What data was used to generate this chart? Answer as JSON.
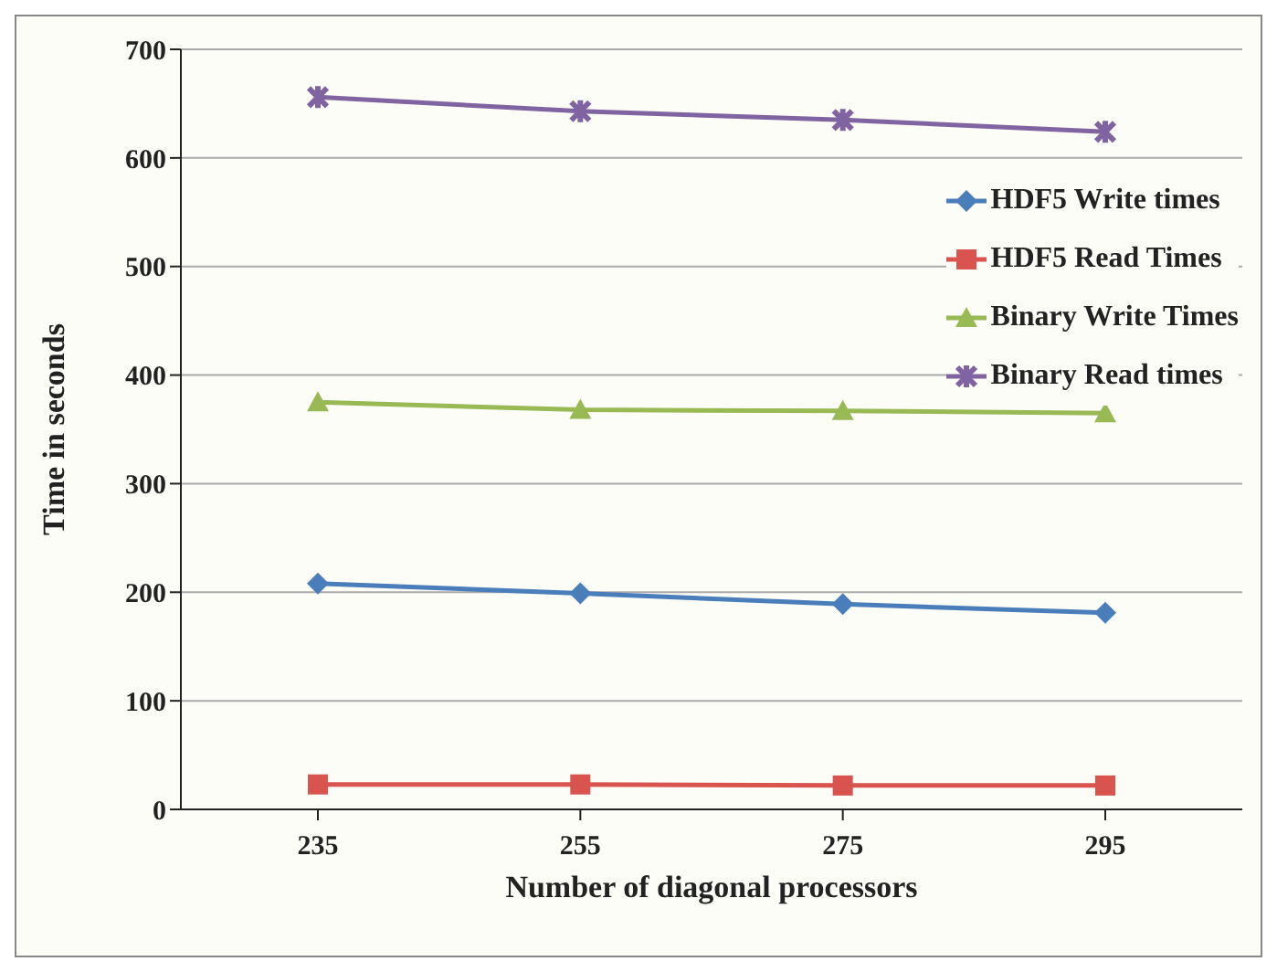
{
  "chart_data": {
    "type": "line",
    "xlabel": "Number of diagonal processors",
    "ylabel": "Time in seconds",
    "categories": [
      "235",
      "255",
      "275",
      "295"
    ],
    "series": [
      {
        "name": "HDF5 Write times",
        "color": "#4a7ebb",
        "values": [
          208,
          199,
          189,
          181
        ],
        "marker": "diamond"
      },
      {
        "name": "HDF5 Read Times",
        "color": "#d9534f",
        "values": [
          23,
          23,
          22,
          22
        ],
        "marker": "square"
      },
      {
        "name": "Binary Write Times",
        "color": "#98b954",
        "values": [
          375,
          368,
          367,
          365
        ],
        "marker": "triangle"
      },
      {
        "name": "Binary Read times",
        "color": "#8064a2",
        "values": [
          656,
          643,
          635,
          624
        ],
        "marker": "cross"
      }
    ],
    "ylim": [
      0,
      700
    ],
    "yticks": [
      0,
      100,
      200,
      300,
      400,
      500,
      600,
      700
    ],
    "grid": "y",
    "legend": "top right",
    "line_style": "solid"
  }
}
